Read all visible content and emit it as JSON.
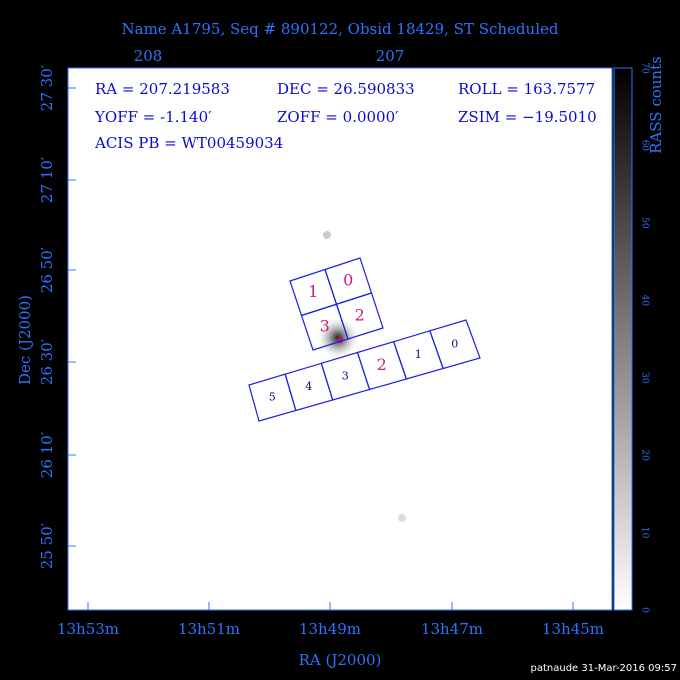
{
  "title": "Name A1795, Seq # 890122, Obsid 18429, ST Scheduled",
  "top_ticks": [
    "208",
    "207"
  ],
  "info": [
    "RA = 207.219583",
    "DEC = 26.590833",
    "ROLL = 163.7577",
    "YOFF =  -1.140′",
    "ZOFF =  0.0000′",
    "ZSIM = −19.5010",
    "ACIS PB = WT00459034"
  ],
  "acis_i": [
    "0",
    "1",
    "2",
    "3"
  ],
  "acis_s": [
    "0",
    "1",
    "2",
    "3",
    "4",
    "5"
  ],
  "y_ticks": [
    "27 30′",
    "27 10′",
    "26 50′",
    "26 30′",
    "26 10′",
    "25 50′"
  ],
  "x_ticks": [
    "13h53m",
    "13h51m",
    "13h49m",
    "13h47m",
    "13h45m"
  ],
  "x_label": "RA (J2000)",
  "y_label": "Dec (J2000)",
  "colorbar_ticks": [
    "0",
    "10",
    "20",
    "30",
    "40",
    "50",
    "60",
    "70"
  ],
  "colorbar_label": "RASS counts",
  "footer": "patnaude 31-Mar-2016 09:57"
}
